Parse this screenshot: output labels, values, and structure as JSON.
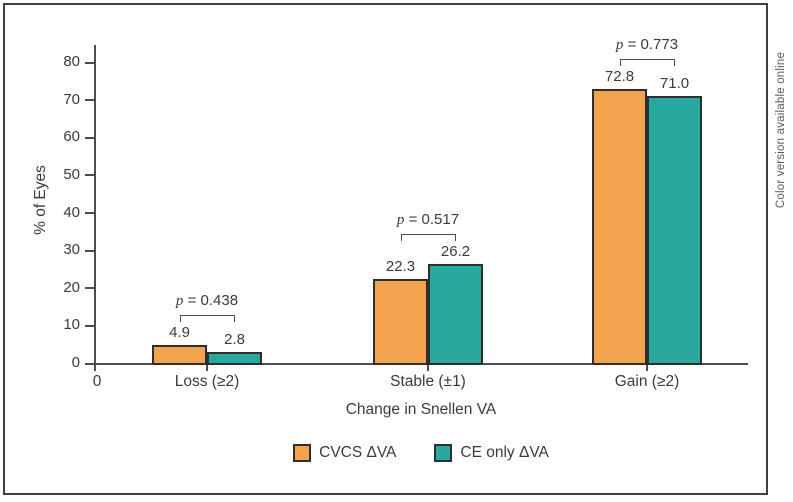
{
  "frame": {
    "side_note": "Color version available online"
  },
  "chart_data": {
    "type": "bar",
    "title": "",
    "categories": [
      "Loss (≥2)",
      "Stable (±1)",
      "Gain (≥2)"
    ],
    "series": [
      {
        "name": "CVCS ΔVA",
        "color": "#F3A24E",
        "values": [
          4.9,
          22.3,
          72.8
        ]
      },
      {
        "name": "CE only ΔVA",
        "color": "#29A8A0",
        "values": [
          2.8,
          26.2,
          71.0
        ]
      }
    ],
    "p_symbol": "p",
    "p_values": [
      "0.438",
      "0.517",
      "0.773"
    ],
    "xlabel": "Change in Snellen VA",
    "ylabel": "% of Eyes",
    "x_origin_label": "0",
    "ylim": [
      0,
      80
    ],
    "ytick_step": 10,
    "yticks": [
      0,
      10,
      20,
      30,
      40,
      50,
      60,
      70,
      80
    ],
    "grid": false,
    "legend_position": "bottom",
    "bar_border_color": "#2e2e2e",
    "axis_color": "#4d4d4d"
  }
}
